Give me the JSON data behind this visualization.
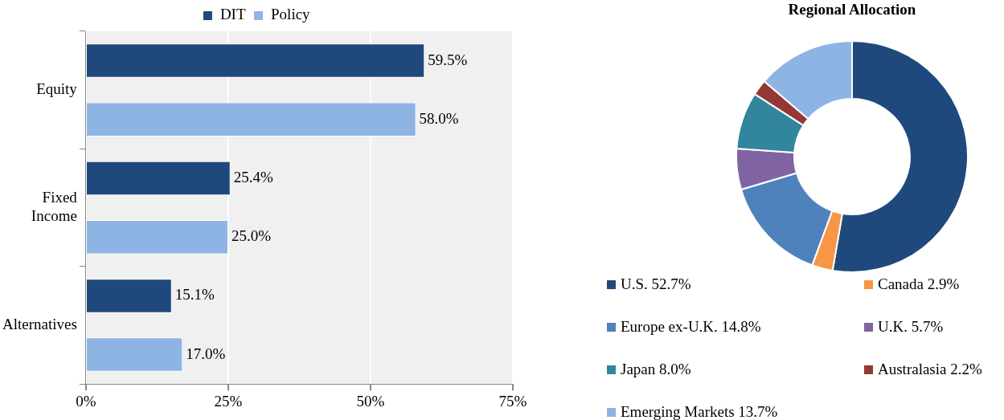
{
  "chart_data": [
    {
      "type": "bar",
      "orientation": "horizontal",
      "categories": [
        "Equity",
        "Fixed Income",
        "Alternatives"
      ],
      "series": [
        {
          "name": "DIT",
          "color": "#1f497d",
          "values": [
            59.5,
            25.4,
            15.1
          ],
          "value_labels": [
            "59.5%",
            "25.4%",
            "15.1%"
          ]
        },
        {
          "name": "Policy",
          "color": "#8eb4e3",
          "values": [
            58.0,
            25.0,
            17.0
          ],
          "value_labels": [
            "58.0%",
            "25.0%",
            "17.0%"
          ]
        }
      ],
      "xlim": [
        0,
        75
      ],
      "xticks": [
        {
          "value": 0,
          "label": "0%"
        },
        {
          "value": 25,
          "label": "25%"
        },
        {
          "value": 50,
          "label": "50%"
        },
        {
          "value": 75,
          "label": "75%"
        }
      ],
      "grid": "x",
      "legend": "top"
    },
    {
      "type": "donut",
      "title": "Regional Allocation",
      "categories": [
        "U.S.",
        "Canada",
        "Europe ex-U.K.",
        "U.K.",
        "Japan",
        "Australasia",
        "Emerging Markets"
      ],
      "values": [
        52.7,
        2.9,
        14.8,
        5.7,
        8.0,
        2.2,
        13.7
      ],
      "colors": [
        "#1f497d",
        "#f79646",
        "#4f81bd",
        "#8064a2",
        "#31859c",
        "#953735",
        "#8eb4e3"
      ],
      "value_labels": [
        "52.7%",
        "2.9%",
        "14.8%",
        "5.7%",
        "8.0%",
        "2.2%",
        "13.7%"
      ],
      "legend": "bottom"
    }
  ]
}
